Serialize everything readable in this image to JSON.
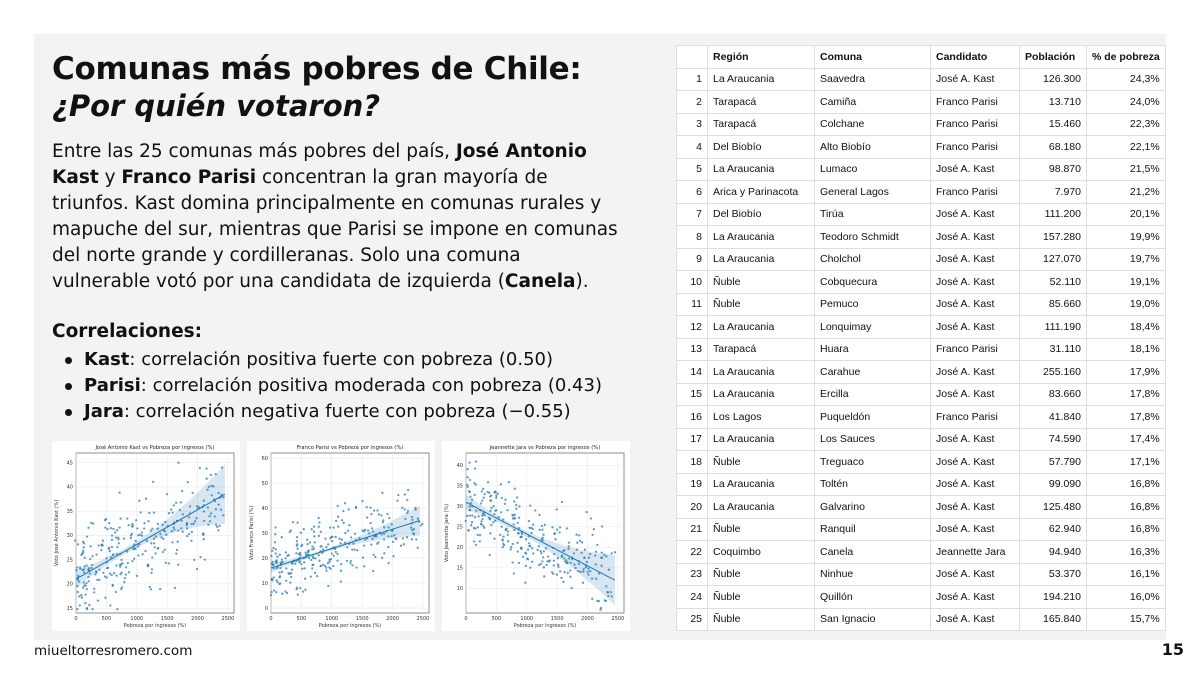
{
  "slide": {
    "title": "Comunas más pobres de Chile:",
    "subtitle": "¿Por quién votaron?",
    "intro": {
      "t1": "Entre las 25 comunas más pobres del país, ",
      "b1": "José Antonio Kast",
      "t2": " y ",
      "b2": "Franco Parisi",
      "t3": " concentran la gran mayoría de triunfos. Kast domina principalmente en comunas rurales y mapuche del sur, mientras que Parisi se impone en comunas del norte grande y cordilleranas. Solo una comuna vulnerable votó por una candidata de izquierda (",
      "b3": "Canela",
      "t4": ")."
    },
    "correlations_title": "Correlaciones:",
    "correlations": [
      {
        "name": "Kast",
        "text": ": correlación positiva fuerte con pobreza (0.50)"
      },
      {
        "name": "Parisi",
        "text": ": correlación positiva moderada con pobreza (0.43)"
      },
      {
        "name": "Jara",
        "text": ": correlación negativa fuerte con pobreza (−0.55)"
      }
    ],
    "footer": "miueltorresromero.com",
    "page_number": "15"
  },
  "table": {
    "headers": [
      "",
      "Región",
      "Comuna",
      "Candidato",
      "Población",
      "% de pobreza"
    ],
    "rows": [
      [
        "1",
        "La Araucania",
        "Saavedra",
        "José A. Kast",
        "126.300",
        "24,3%"
      ],
      [
        "2",
        "Tarapacá",
        "Camiña",
        "Franco Parisi",
        "13.710",
        "24,0%"
      ],
      [
        "3",
        "Tarapacá",
        "Colchane",
        "Franco Parisi",
        "15.460",
        "22,3%"
      ],
      [
        "4",
        "Del Biobío",
        "Alto Biobío",
        "Franco Parisi",
        "68.180",
        "22,1%"
      ],
      [
        "5",
        "La Araucania",
        "Lumaco",
        "José A. Kast",
        "98.870",
        "21,5%"
      ],
      [
        "6",
        "Arica y Parinacota",
        "General Lagos",
        "Franco Parisi",
        "7.970",
        "21,2%"
      ],
      [
        "7",
        "Del Biobío",
        "Tirúa",
        "José A. Kast",
        "111.200",
        "20,1%"
      ],
      [
        "8",
        "La Araucania",
        "Teodoro Schmidt",
        "José A. Kast",
        "157.280",
        "19,9%"
      ],
      [
        "9",
        "La Araucania",
        "Cholchol",
        "José A. Kast",
        "127.070",
        "19,7%"
      ],
      [
        "10",
        "Ñuble",
        "Cobquecura",
        "José A. Kast",
        "52.110",
        "19,1%"
      ],
      [
        "11",
        "Ñuble",
        "Pemuco",
        "José A. Kast",
        "85.660",
        "19,0%"
      ],
      [
        "12",
        "La Araucania",
        "Lonquimay",
        "José A. Kast",
        "111.190",
        "18,4%"
      ],
      [
        "13",
        "Tarapacá",
        "Huara",
        "Franco Parisi",
        "31.110",
        "18,1%"
      ],
      [
        "14",
        "La Araucania",
        "Carahue",
        "José A. Kast",
        "255.160",
        "17,9%"
      ],
      [
        "15",
        "La Araucania",
        "Ercilla",
        "José A. Kast",
        "83.660",
        "17,8%"
      ],
      [
        "16",
        "Los Lagos",
        "Puqueldón",
        "Franco Parisi",
        "41.840",
        "17,8%"
      ],
      [
        "17",
        "La Araucania",
        "Los Sauces",
        "José A. Kast",
        "74.590",
        "17,4%"
      ],
      [
        "18",
        "Ñuble",
        "Treguaco",
        "José A. Kast",
        "57.790",
        "17,1%"
      ],
      [
        "19",
        "La Araucania",
        "Toltén",
        "José A. Kast",
        "99.090",
        "16,8%"
      ],
      [
        "20",
        "La Araucania",
        "Galvarino",
        "José A. Kast",
        "125.480",
        "16,8%"
      ],
      [
        "21",
        "Ñuble",
        "Ranquil",
        "José A. Kast",
        "62.940",
        "16,8%"
      ],
      [
        "22",
        "Coquimbo",
        "Canela",
        "Jeannette Jara",
        "94.940",
        "16,3%"
      ],
      [
        "23",
        "Ñuble",
        "Ninhue",
        "José A. Kast",
        "53.370",
        "16,1%"
      ],
      [
        "24",
        "Ñuble",
        "Quillón",
        "José A. Kast",
        "194.210",
        "16,0%"
      ],
      [
        "25",
        "Ñuble",
        "San Ignacio",
        "José A. Kast",
        "165.840",
        "15,7%"
      ]
    ]
  },
  "chart_data": [
    {
      "type": "scatter",
      "title": "José Antonio Kast vs Pobreza por ingresos (%)",
      "xlabel": "Pobreza por ingresos (%)",
      "ylabel": "Voto José Antonio Kast (%)",
      "xlim": [
        0,
        2600
      ],
      "ylim": [
        14,
        47
      ],
      "xticks": [
        0,
        500,
        1000,
        1500,
        2000,
        2500
      ],
      "yticks": [
        15,
        20,
        25,
        30,
        35,
        40,
        45
      ],
      "trend": {
        "x0": 0,
        "y0": 21,
        "x1": 2450,
        "y1": 38.5
      },
      "n_points": 300,
      "seed": 7,
      "noise": 5,
      "color": "#1f77b4",
      "grid": true
    },
    {
      "type": "scatter",
      "title": "Franco Parisi vs Pobreza por ingresos (%)",
      "xlabel": "Pobreza por ingresos (%)",
      "ylabel": "Voto Franco Parisi (%)",
      "xlim": [
        0,
        2600
      ],
      "ylim": [
        -2,
        62
      ],
      "xticks": [
        0,
        500,
        1000,
        1500,
        2000,
        2500
      ],
      "yticks": [
        0,
        10,
        20,
        30,
        40,
        50,
        60
      ],
      "trend": {
        "x0": 0,
        "y0": 16,
        "x1": 2450,
        "y1": 35
      },
      "n_points": 300,
      "seed": 11,
      "noise": 7,
      "color": "#1f77b4",
      "grid": true
    },
    {
      "type": "scatter",
      "title": "Jeannette Jara vs Pobreza por ingresos (%)",
      "xlabel": "Pobreza por ingresos (%)",
      "ylabel": "Voto Jeannette Jara (%)",
      "xlim": [
        0,
        2600
      ],
      "ylim": [
        4,
        43
      ],
      "xticks": [
        0,
        500,
        1000,
        1500,
        2000,
        2500
      ],
      "yticks": [
        10,
        15,
        20,
        25,
        30,
        35,
        40
      ],
      "trend": {
        "x0": 0,
        "y0": 31,
        "x1": 2450,
        "y1": 12
      },
      "n_points": 300,
      "seed": 23,
      "noise": 5,
      "color": "#1f77b4",
      "grid": true
    }
  ]
}
